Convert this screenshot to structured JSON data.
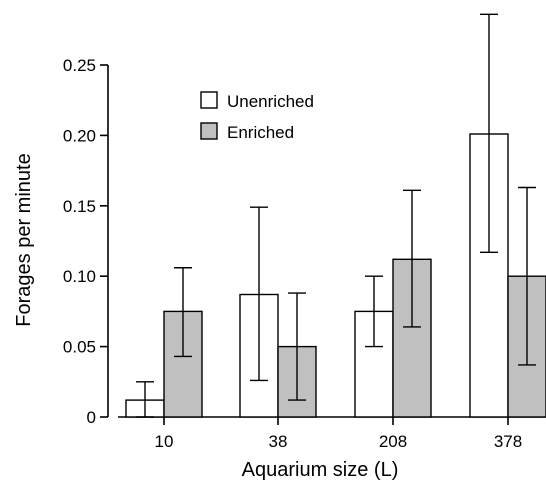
{
  "chart_data": {
    "type": "bar",
    "xlabel": "Aquarium size (L)",
    "ylabel": "Forages per minute",
    "categories": [
      "10",
      "38",
      "208",
      "378"
    ],
    "ylim": [
      0,
      0.25
    ],
    "yticks": [
      "0",
      "0.05",
      "0.10",
      "0.15",
      "0.20",
      "0.25"
    ],
    "ytick_values": [
      0,
      0.05,
      0.1,
      0.15,
      0.2,
      0.25
    ],
    "legend_position": "top-left",
    "grid": false,
    "series": [
      {
        "name": "Unenriched",
        "color": "#ffffff",
        "values": [
          0.012,
          0.087,
          0.075,
          0.201
        ],
        "err_low": [
          0.0,
          0.026,
          0.05,
          0.117
        ],
        "err_high": [
          0.025,
          0.149,
          0.1,
          0.286
        ]
      },
      {
        "name": "Enriched",
        "color": "#c0c0c0",
        "values": [
          0.075,
          0.05,
          0.112,
          0.1
        ],
        "err_low": [
          0.043,
          0.012,
          0.064,
          0.037
        ],
        "err_high": [
          0.106,
          0.088,
          0.161,
          0.163
        ]
      }
    ]
  }
}
